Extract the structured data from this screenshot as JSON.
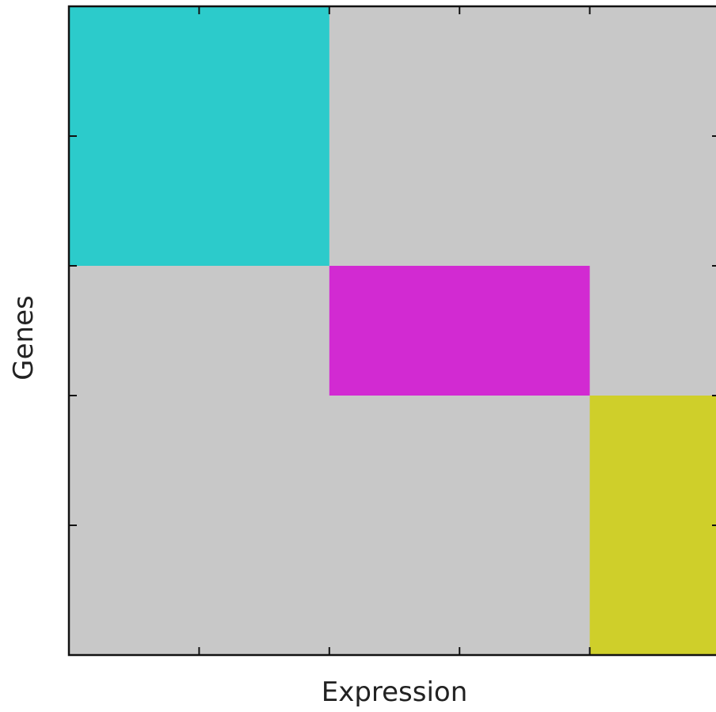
{
  "chart_data": {
    "type": "heatmap",
    "xlabel": "Expression",
    "ylabel": "Genes",
    "grid": false,
    "background_color": "#c8c8c8",
    "blocks": [
      {
        "name": "",
        "color": "#2ccbcb",
        "cols": [
          0,
          0.4
        ],
        "rows": [
          0,
          0.4
        ]
      },
      {
        "name": "",
        "color": "#d22ad2",
        "cols": [
          0.4,
          0.8
        ],
        "rows": [
          0.4,
          0.6
        ]
      },
      {
        "name": "",
        "color": "#cfcf2a",
        "cols": [
          0.8,
          1.0
        ],
        "rows": [
          0.6,
          1.0
        ]
      }
    ],
    "x_ticks": [
      0,
      0.2,
      0.4,
      0.6,
      0.8,
      1.0
    ],
    "y_ticks": [
      0,
      0.2,
      0.4,
      0.6,
      0.8,
      1.0
    ]
  }
}
